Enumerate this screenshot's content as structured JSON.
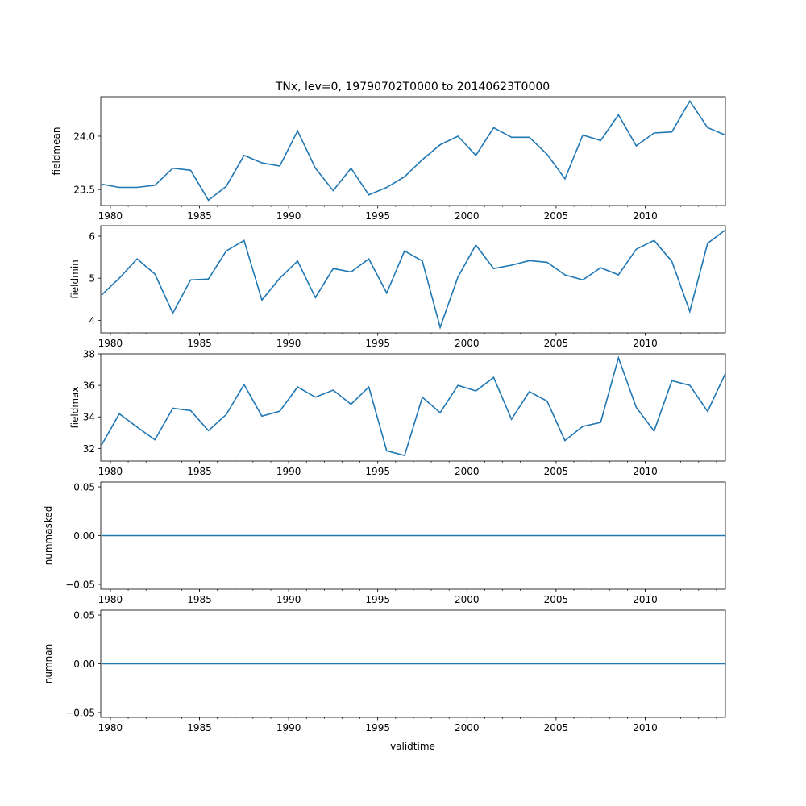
{
  "chart_data": {
    "type": "line",
    "title": "TNx, lev=0, 19790702T0000 to 20140623T0000",
    "xlabel": "validtime",
    "xlim": [
      1979.46,
      2014.5
    ],
    "x_ticks": [
      1980,
      1985,
      1990,
      1995,
      2000,
      2005,
      2010
    ],
    "x_tick_labels": [
      "1980",
      "1985",
      "1990",
      "1995",
      "2000",
      "2005",
      "2010"
    ],
    "x": [
      1979.5,
      1980.5,
      1981.5,
      1982.5,
      1983.5,
      1984.5,
      1985.5,
      1986.5,
      1987.5,
      1988.5,
      1989.5,
      1990.5,
      1991.5,
      1992.5,
      1993.5,
      1994.5,
      1995.5,
      1996.5,
      1997.5,
      1998.5,
      1999.5,
      2000.5,
      2001.5,
      2002.5,
      2003.5,
      2004.5,
      2005.5,
      2006.5,
      2007.5,
      2008.5,
      2009.5,
      2010.5,
      2011.5,
      2012.5,
      2013.5,
      2014.5
    ],
    "line_color": "#1f77b4",
    "panels": [
      {
        "ylabel": "fieldmean",
        "ylim": [
          23.35,
          24.37
        ],
        "y_ticks": [
          23.5,
          24.0
        ],
        "y_tick_labels": [
          "23.5",
          "24.0"
        ],
        "values": [
          23.55,
          23.52,
          23.52,
          23.54,
          23.7,
          23.68,
          23.4,
          23.53,
          23.82,
          23.75,
          23.72,
          24.05,
          23.7,
          23.49,
          23.7,
          23.45,
          23.52,
          23.62,
          23.78,
          23.92,
          24.0,
          23.82,
          24.08,
          23.99,
          23.99,
          23.83,
          23.6,
          24.01,
          23.96,
          24.2,
          23.91,
          24.03,
          24.04,
          24.33,
          24.08,
          24.01
        ]
      },
      {
        "ylabel": "fieldmin",
        "ylim": [
          3.7,
          6.25
        ],
        "y_ticks": [
          4,
          5,
          6
        ],
        "y_tick_labels": [
          "4",
          "5",
          "6"
        ],
        "values": [
          4.6,
          5.0,
          5.46,
          5.1,
          4.17,
          4.96,
          4.98,
          5.65,
          5.9,
          4.48,
          5.0,
          5.41,
          4.54,
          5.23,
          5.15,
          5.46,
          4.65,
          5.65,
          5.41,
          3.83,
          5.03,
          5.79,
          5.23,
          5.31,
          5.42,
          5.38,
          5.08,
          4.96,
          5.25,
          5.08,
          5.69,
          5.9,
          5.4,
          4.21,
          5.83,
          6.15
        ]
      },
      {
        "ylabel": "fieldmax",
        "ylim": [
          31.2,
          38.0
        ],
        "y_ticks": [
          32,
          34,
          36,
          38
        ],
        "y_tick_labels": [
          "32",
          "34",
          "36",
          "38"
        ],
        "values": [
          32.2,
          34.2,
          33.35,
          32.55,
          34.55,
          34.4,
          33.13,
          34.15,
          36.05,
          34.05,
          34.36,
          35.9,
          35.25,
          35.7,
          34.8,
          35.9,
          31.85,
          31.55,
          35.25,
          34.27,
          36.0,
          35.65,
          36.5,
          33.85,
          35.6,
          35.0,
          32.5,
          33.4,
          33.65,
          37.75,
          34.6,
          33.1,
          36.3,
          36.0,
          34.35,
          36.75
        ]
      },
      {
        "ylabel": "nummasked",
        "ylim": [
          -0.055,
          0.055
        ],
        "y_ticks": [
          -0.05,
          0.0,
          0.05
        ],
        "y_tick_labels": [
          "−0.05",
          "0.00",
          "0.05"
        ],
        "values": [
          0,
          0,
          0,
          0,
          0,
          0,
          0,
          0,
          0,
          0,
          0,
          0,
          0,
          0,
          0,
          0,
          0,
          0,
          0,
          0,
          0,
          0,
          0,
          0,
          0,
          0,
          0,
          0,
          0,
          0,
          0,
          0,
          0,
          0,
          0,
          0
        ]
      },
      {
        "ylabel": "numnan",
        "ylim": [
          -0.055,
          0.055
        ],
        "y_ticks": [
          -0.05,
          0.0,
          0.05
        ],
        "y_tick_labels": [
          "−0.05",
          "0.00",
          "0.05"
        ],
        "values": [
          0,
          0,
          0,
          0,
          0,
          0,
          0,
          0,
          0,
          0,
          0,
          0,
          0,
          0,
          0,
          0,
          0,
          0,
          0,
          0,
          0,
          0,
          0,
          0,
          0,
          0,
          0,
          0,
          0,
          0,
          0,
          0,
          0,
          0,
          0,
          0
        ]
      }
    ]
  }
}
